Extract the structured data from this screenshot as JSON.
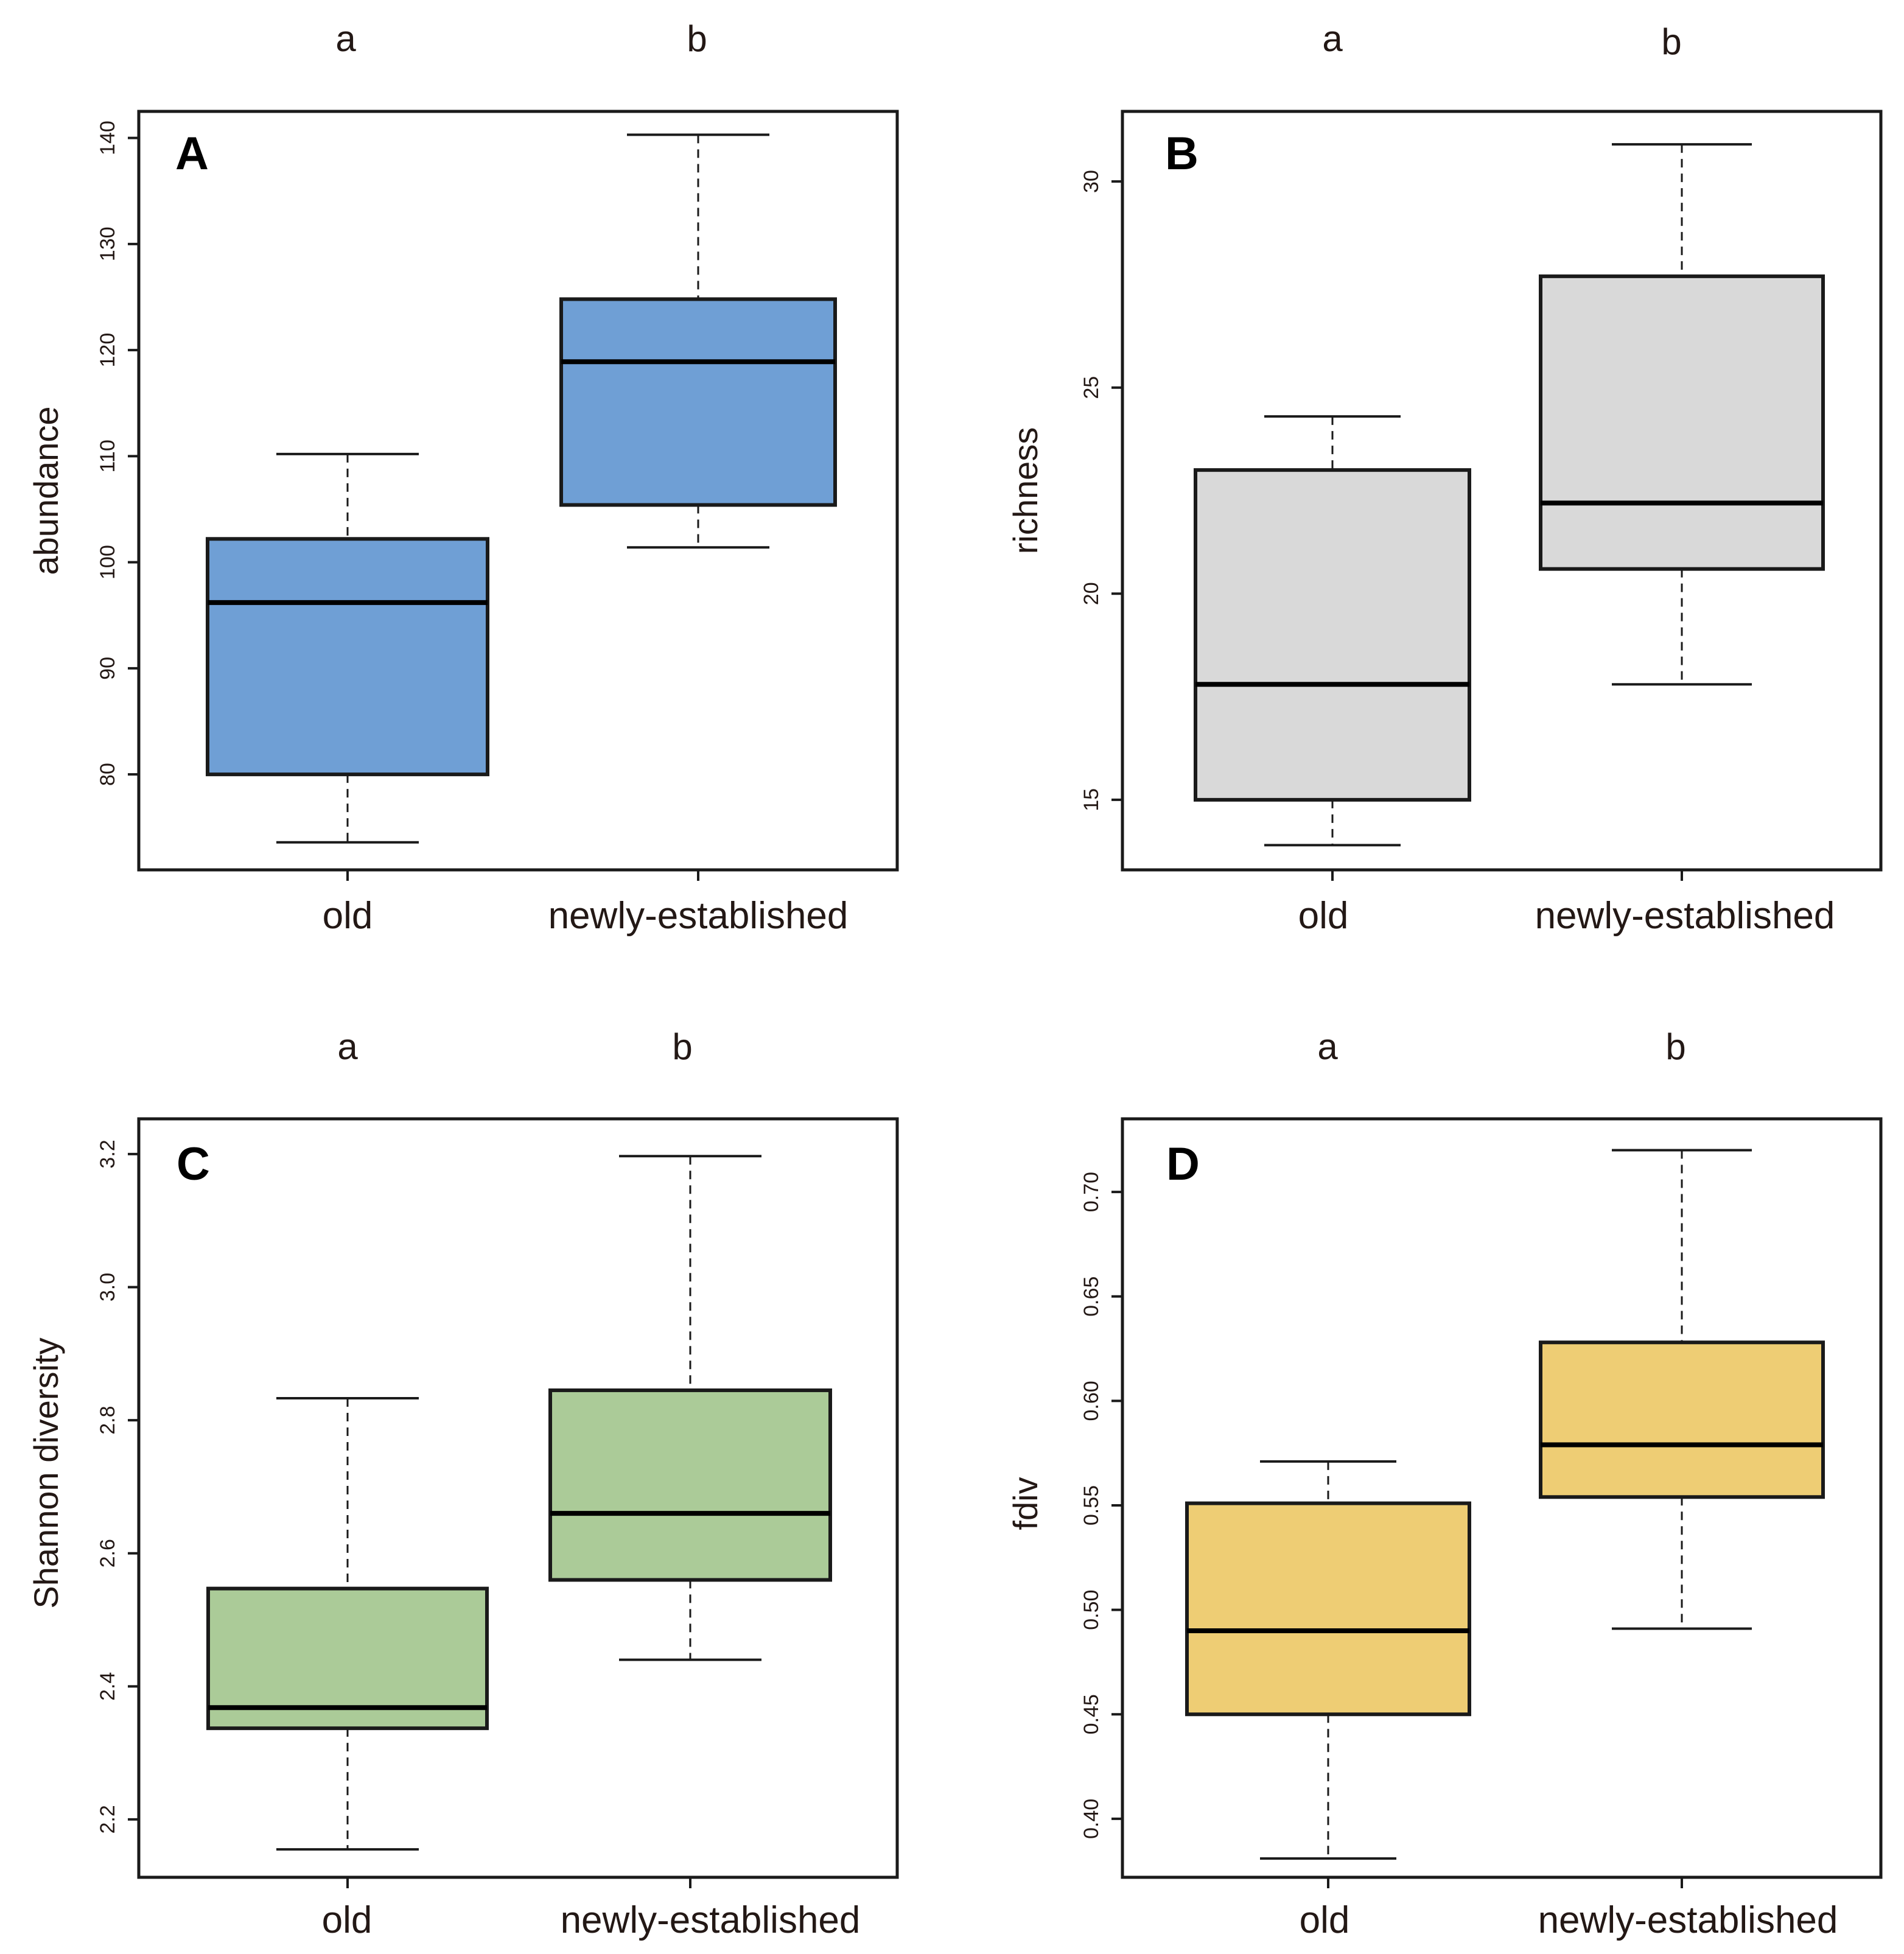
{
  "colors": {
    "frame": "#1a1a1a",
    "text": "#231815"
  },
  "chart_data": [
    {
      "type": "box",
      "panel": "A",
      "ylabel": "abundance",
      "ylim": [
        71,
        142.5
      ],
      "yticks": [
        80,
        90,
        100,
        110,
        120,
        130,
        140
      ],
      "categories": [
        "old",
        "newly-established"
      ],
      "significance": [
        "a",
        "b"
      ],
      "color": "#6f9fd5",
      "boxes": [
        {
          "min": 73.6,
          "q1": 80.0,
          "median": 96.2,
          "q3": 102.2,
          "max": 110.2
        },
        {
          "min": 101.4,
          "q1": 105.4,
          "median": 118.9,
          "q3": 124.8,
          "max": 140.3
        }
      ]
    },
    {
      "type": "box",
      "panel": "B",
      "ylabel": "richness",
      "ylim": [
        13.3,
        31.7
      ],
      "yticks": [
        15,
        20,
        25,
        30
      ],
      "categories": [
        "old",
        "newly-established"
      ],
      "significance": [
        "a",
        "b"
      ],
      "color": "#d9d9d9",
      "boxes": [
        {
          "min": 13.9,
          "q1": 15.0,
          "median": 17.8,
          "q3": 23.0,
          "max": 24.3
        },
        {
          "min": 17.8,
          "q1": 20.6,
          "median": 22.2,
          "q3": 27.7,
          "max": 30.9
        }
      ]
    },
    {
      "type": "box",
      "panel": "C",
      "ylabel": "Shannon diversity",
      "ylim": [
        2.113,
        3.253
      ],
      "yticks": [
        2.2,
        2.4,
        2.6,
        2.8,
        3.0,
        3.2
      ],
      "ytick_labels": [
        "2.2",
        "2.4",
        "2.6",
        "2.8",
        "3.0",
        "3.2"
      ],
      "categories": [
        "old",
        "newly-established"
      ],
      "significance": [
        "a",
        "b"
      ],
      "color": "#abcb98",
      "boxes": [
        {
          "min": 2.155,
          "q1": 2.337,
          "median": 2.368,
          "q3": 2.547,
          "max": 2.833
        },
        {
          "min": 2.44,
          "q1": 2.56,
          "median": 2.66,
          "q3": 2.845,
          "max": 3.197
        }
      ]
    },
    {
      "type": "box",
      "panel": "D",
      "ylabel": "fdiv",
      "ylim": [
        0.372,
        0.735
      ],
      "yticks": [
        0.4,
        0.45,
        0.5,
        0.55,
        0.6,
        0.65,
        0.7
      ],
      "ytick_labels": [
        "0.40",
        "0.45",
        "0.50",
        "0.55",
        "0.60",
        "0.65",
        "0.70"
      ],
      "categories": [
        "old",
        "newly-established"
      ],
      "significance": [
        "a",
        "b"
      ],
      "color": "#eecd74",
      "boxes": [
        {
          "min": 0.381,
          "q1": 0.45,
          "median": 0.49,
          "q3": 0.551,
          "max": 0.571
        },
        {
          "min": 0.491,
          "q1": 0.554,
          "median": 0.579,
          "q3": 0.628,
          "max": 0.72
        }
      ]
    }
  ]
}
